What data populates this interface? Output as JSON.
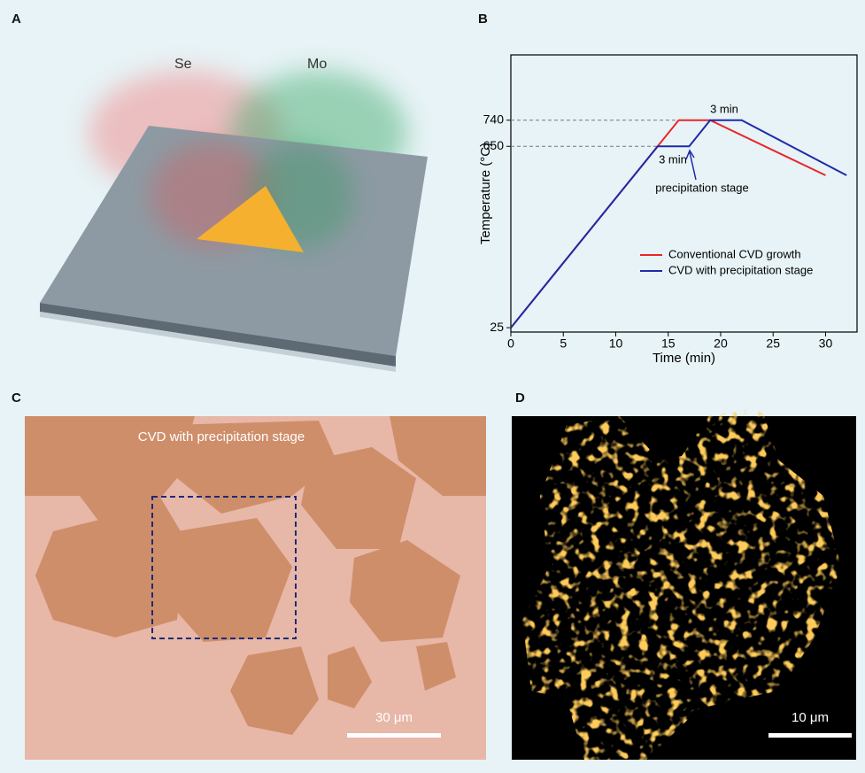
{
  "panels": {
    "a": {
      "label": "A",
      "species": [
        "Se",
        "Mo"
      ]
    },
    "b": {
      "label": "B"
    },
    "c": {
      "label": "C",
      "caption": "CVD with precipitation stage",
      "scale": "30 μm"
    },
    "d": {
      "label": "D",
      "scale": "10 μm"
    }
  },
  "chart_data": {
    "type": "line",
    "x_label": "Time (min)",
    "y_label": "Temperature (°C)",
    "xlim": [
      0,
      33
    ],
    "ylim": [
      10,
      965
    ],
    "xticks": [
      0,
      5,
      10,
      15,
      20,
      25,
      30
    ],
    "yticks": [
      25,
      650,
      740
    ],
    "legend": "right",
    "series": [
      {
        "name": "Conventional CVD growth",
        "color": "#e8262a",
        "x": [
          0,
          16,
          19,
          30
        ],
        "values": [
          25,
          740,
          740,
          550
        ]
      },
      {
        "name": "CVD with precipitation stage",
        "color": "#1f2aa8",
        "x": [
          0,
          14,
          17,
          19,
          22,
          32
        ],
        "values": [
          25,
          650,
          650,
          740,
          740,
          550
        ]
      }
    ],
    "annotations": [
      "3 min",
      "3 min",
      "precipitation stage"
    ]
  }
}
